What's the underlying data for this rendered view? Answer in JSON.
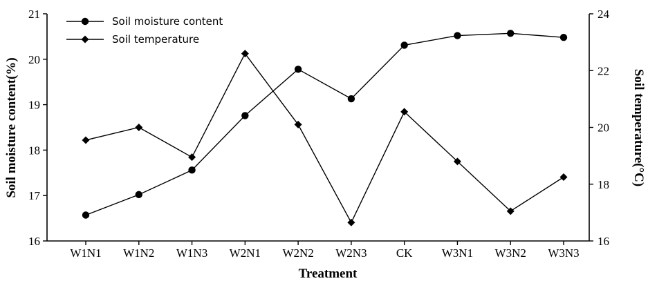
{
  "chart_data": {
    "type": "line",
    "categories": [
      "W1N1",
      "W1N2",
      "W1N3",
      "W2N1",
      "W2N2",
      "W2N3",
      "CK",
      "W3N1",
      "W3N2",
      "W3N3"
    ],
    "series": [
      {
        "name": "Soil moisture content",
        "axis": "left",
        "marker": "circle",
        "values": [
          16.57,
          17.02,
          17.56,
          18.76,
          19.78,
          19.13,
          20.31,
          20.52,
          20.57,
          20.48
        ]
      },
      {
        "name": "Soil temperature",
        "axis": "right",
        "marker": "diamond",
        "values": [
          19.55,
          20.0,
          18.95,
          22.6,
          20.1,
          16.65,
          20.55,
          18.8,
          17.05,
          18.25
        ]
      }
    ],
    "xlabel": "Treatment",
    "ylabel_left": "Soil moisture content(%)",
    "ylabel_right": "Soil temperature(°C)",
    "ylim_left": [
      16,
      21
    ],
    "yticks_left": [
      16,
      17,
      18,
      19,
      20,
      21
    ],
    "ylim_right": [
      16,
      24
    ],
    "yticks_right": [
      16,
      18,
      20,
      22,
      24
    ],
    "grid": false,
    "legend_position": "top-left"
  }
}
